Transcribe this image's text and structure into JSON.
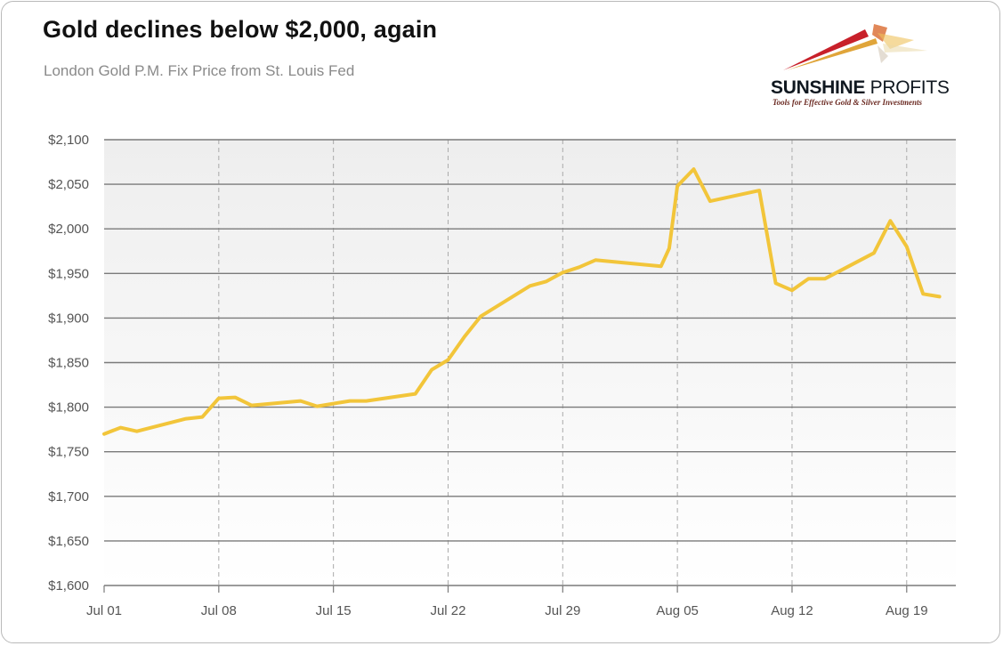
{
  "title": "Gold declines below $2,000, again",
  "subtitle": "London Gold P.M. Fix Price from St. Louis Fed",
  "logo": {
    "name_bold": "SUNSHINE",
    "name_light": " PROFITS",
    "tagline": "Tools for Effective Gold & Silver Investments"
  },
  "colors": {
    "line": "#f2c53a",
    "grid": "#7a7a7a",
    "vgrid": "#aaaaaa",
    "plot_top": "#eeeeee",
    "plot_bottom": "#ffffff"
  },
  "chart_data": {
    "type": "line",
    "title": "Gold declines below $2,000, again",
    "subtitle": "London Gold P.M. Fix Price from St. Louis Fed",
    "xlabel": "",
    "ylabel": "",
    "ylim": [
      1600,
      2100
    ],
    "xlim": [
      "2023-07-01",
      "2023-08-22"
    ],
    "grid": true,
    "y_ticks": [
      1600,
      1650,
      1700,
      1750,
      1800,
      1850,
      1900,
      1950,
      2000,
      2050,
      2100
    ],
    "y_tick_labels": [
      "$1,600",
      "$1,650",
      "$1,700",
      "$1,750",
      "$1,800",
      "$1,850",
      "$1,900",
      "$1,950",
      "$2,000",
      "$2,050",
      "$2,100"
    ],
    "x_ticks": [
      "2023-07-01",
      "2023-07-08",
      "2023-07-15",
      "2023-07-22",
      "2023-07-29",
      "2023-08-05",
      "2023-08-12",
      "2023-08-19"
    ],
    "x_tick_labels": [
      "Jul 01",
      "Jul 08",
      "Jul 15",
      "Jul 22",
      "Jul 29",
      "Aug 05",
      "Aug 12",
      "Aug 19"
    ],
    "series": [
      {
        "color": "#f2c53a",
        "x": [
          "2023-07-01",
          "2023-07-02",
          "2023-07-03",
          "2023-07-06",
          "2023-07-07",
          "2023-07-08",
          "2023-07-09",
          "2023-07-10",
          "2023-07-13",
          "2023-07-14",
          "2023-07-16",
          "2023-07-17",
          "2023-07-20",
          "2023-07-21",
          "2023-07-22",
          "2023-07-23",
          "2023-07-24",
          "2023-07-27",
          "2023-07-28",
          "2023-07-29",
          "2023-07-30",
          "2023-07-31",
          "2023-08-04",
          "2023-08-04T12:00",
          "2023-08-05",
          "2023-08-06",
          "2023-08-07",
          "2023-08-10",
          "2023-08-11",
          "2023-08-12",
          "2023-08-13",
          "2023-08-14",
          "2023-08-17",
          "2023-08-18",
          "2023-08-19",
          "2023-08-20",
          "2023-08-21"
        ],
        "values": [
          1770,
          1777,
          1773,
          1787,
          1789,
          1810,
          1811,
          1802,
          1807,
          1801,
          1807,
          1807,
          1815,
          1842,
          1853,
          1879,
          1902,
          1936,
          1941,
          1951,
          1957,
          1965,
          1958,
          1978,
          2048,
          2067,
          2031,
          2043,
          1939,
          1931,
          1944,
          1944,
          1973,
          2009,
          1980,
          1927,
          1924
        ]
      }
    ]
  }
}
